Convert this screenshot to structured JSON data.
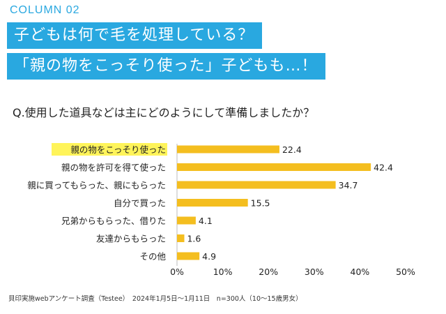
{
  "header": {
    "column_label": "COLUMN 02",
    "headline_line1": "子どもは何で毛を処理している？",
    "headline_line2": "「親の物をこっそり使った」子どもも…！"
  },
  "question": "Q.使用した道具などは主にどのようにして準備しましたか？",
  "footnote": "貝印実施webアンケート調査（Testee）　2024年1月5日〜1月11日　n=300人（10〜15歳男女）",
  "colors": {
    "accent_blue": "#29a8e0",
    "bar": "#f4be1f",
    "highlight_label": "#fff45a",
    "axis": "#bbbbbb"
  },
  "chart_data": {
    "type": "bar",
    "orientation": "horizontal",
    "categories": [
      "親の物をこっそり使った",
      "親の物を許可を得て使った",
      "親に買ってもらった、親にもらった",
      "自分で買った",
      "兄弟からもらった、借りた",
      "友達からもらった",
      "その他"
    ],
    "values": [
      22.4,
      42.4,
      34.7,
      15.5,
      4.1,
      1.6,
      4.9
    ],
    "value_labels": [
      "22.4",
      "42.4",
      "34.7",
      "15.5",
      "4.1",
      "1.6",
      "4.9"
    ],
    "highlighted_category_index": 0,
    "x_ticks": [
      "0%",
      "10%",
      "20%",
      "30%",
      "40%",
      "50%"
    ],
    "x_tick_values": [
      0,
      10,
      20,
      30,
      40,
      50
    ],
    "xlim": [
      0,
      50
    ],
    "grid": false
  }
}
